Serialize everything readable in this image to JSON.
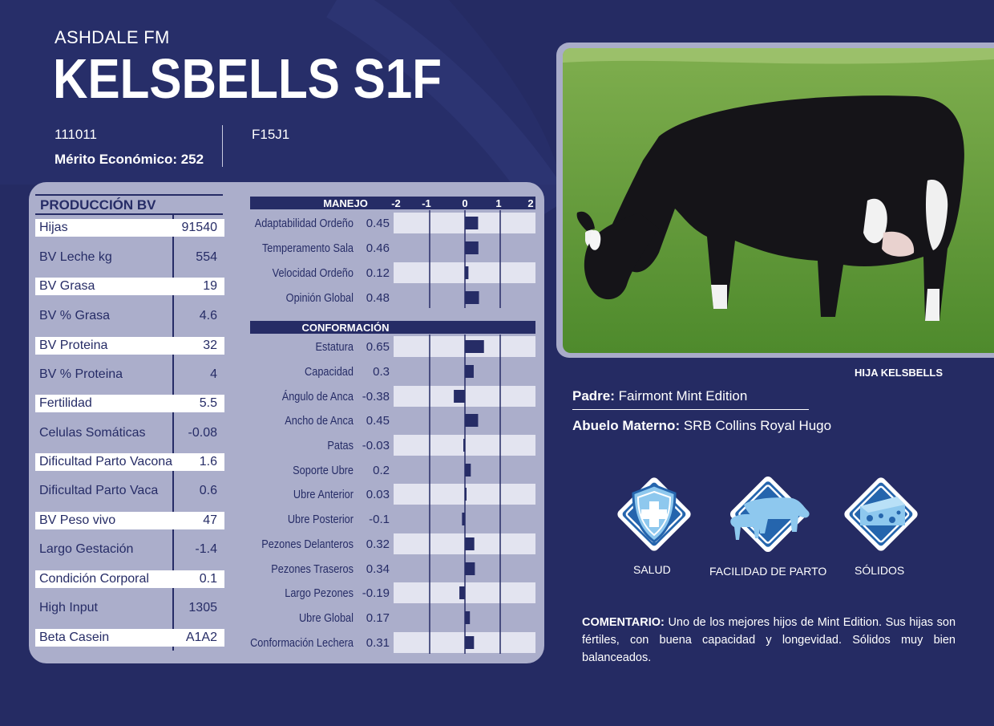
{
  "header": {
    "farm": "ASHDALE FM",
    "bull_name": "KELSBELLS S1F",
    "code": "111011",
    "merit": "Mérito Económico: 252",
    "code2": "F15J1"
  },
  "production": {
    "title": "PRODUCCIÓN BV",
    "rows": [
      {
        "label": "Hijas",
        "value": "91540",
        "shaded": true
      },
      {
        "label": "BV Leche kg",
        "value": "554",
        "shaded": false
      },
      {
        "label": "BV Grasa",
        "value": "19",
        "shaded": true
      },
      {
        "label": "BV % Grasa",
        "value": "4.6",
        "shaded": false
      },
      {
        "label": "BV Proteina",
        "value": "32",
        "shaded": true
      },
      {
        "label": "BV % Proteina",
        "value": "4",
        "shaded": false
      },
      {
        "label": "Fertilidad",
        "value": "5.5",
        "shaded": true
      },
      {
        "label": "Celulas Somáticas",
        "value": "-0.08",
        "shaded": false
      },
      {
        "label": "Dificultad Parto Vacona",
        "value": "1.6",
        "shaded": true
      },
      {
        "label": "Dificultad Parto Vaca",
        "value": "0.6",
        "shaded": false
      },
      {
        "label": "BV Peso vivo",
        "value": "47",
        "shaded": true
      },
      {
        "label": "Largo Gestación",
        "value": "-1.4",
        "shaded": false
      },
      {
        "label": "Condición Corporal",
        "value": "0.1",
        "shaded": true
      },
      {
        "label": "High Input",
        "value": "1305",
        "shaded": false
      },
      {
        "label": "Beta Casein",
        "value": "A1A2",
        "shaded": true
      }
    ]
  },
  "chart_data": {
    "type": "bar",
    "orientation": "horizontal",
    "xlim": [
      -2,
      2
    ],
    "ticks": [
      "-2",
      "-1",
      "0",
      "1",
      "2"
    ],
    "grid": true,
    "groups": [
      {
        "title": "MANEJO",
        "categories": [
          "Adaptabilidad Ordeño",
          "Temperamento Sala",
          "Velocidad Ordeño",
          "Opinión Global"
        ],
        "values": [
          0.45,
          0.46,
          0.12,
          0.48
        ],
        "labels": [
          "0.45",
          "0.46",
          "0.12",
          "0.48"
        ]
      },
      {
        "title": "CONFORMACIÓN",
        "categories": [
          "Estatura",
          "Capacidad",
          "Ángulo de Anca",
          "Ancho de Anca",
          "Patas",
          "Soporte Ubre",
          "Ubre Anterior",
          "Ubre Posterior",
          "Pezones Delanteros",
          "Pezones Traseros",
          "Largo Pezones",
          "Ubre Global",
          "Conformación Lechera"
        ],
        "values": [
          0.65,
          0.3,
          -0.38,
          0.45,
          -0.03,
          0.2,
          0.03,
          -0.1,
          0.32,
          0.34,
          -0.19,
          0.17,
          0.31
        ],
        "labels": [
          "0.65",
          "0.3",
          "-0.38",
          "0.45",
          "-0.03",
          "0.2",
          "0.03",
          "-0.1",
          "0.32",
          "0.34",
          "-0.19",
          "0.17",
          "0.31"
        ]
      }
    ]
  },
  "photo": {
    "caption": "HIJA KELSBELLS"
  },
  "pedigree": {
    "sire_label": "Padre:",
    "sire": "Fairmont Mint Edition",
    "mgs_label": "Abuelo Materno:",
    "mgs": "SRB Collins Royal Hugo"
  },
  "badges": [
    {
      "label": "SALUD",
      "icon": "shield-cross-icon"
    },
    {
      "label": "FACILIDAD DE PARTO",
      "icon": "cow-calf-icon"
    },
    {
      "label": "SÓLIDOS",
      "icon": "cheese-icon"
    }
  ],
  "comment": {
    "label": "COMENTARIO:",
    "text": "Uno de los mejores hijos de Mint Edition. Sus hijas son fértiles, con buena capacidad y longevidad. Sólidos muy bien balanceados."
  },
  "colors": {
    "background": "#252b63",
    "panel": "#abaecb",
    "navy": "#262c66",
    "badge_blue": "#2565ad",
    "light_blue": "#8ec8ee"
  }
}
